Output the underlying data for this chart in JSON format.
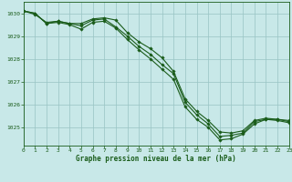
{
  "title": "Graphe pression niveau de la mer (hPa)",
  "bg_color": "#c8e8e8",
  "grid_color": "#98c4c4",
  "line_color": "#1a5c1a",
  "x_ticks": [
    0,
    1,
    2,
    3,
    4,
    5,
    6,
    7,
    8,
    9,
    10,
    11,
    12,
    13,
    14,
    15,
    16,
    17,
    18,
    19,
    20,
    21,
    22,
    23
  ],
  "y_ticks": [
    1025,
    1026,
    1027,
    1028,
    1029,
    1030
  ],
  "ylim": [
    1024.2,
    1030.5
  ],
  "xlim": [
    0,
    23
  ],
  "series": [
    [
      1030.1,
      1030.0,
      1029.55,
      1029.65,
      1029.55,
      1029.55,
      1029.75,
      1029.8,
      1029.7,
      1029.15,
      1028.75,
      1028.45,
      1028.05,
      1027.45,
      1026.25,
      1025.7,
      1025.3,
      1024.8,
      1024.75,
      1024.85,
      1025.3,
      1025.4,
      1025.35,
      1025.3
    ],
    [
      1030.1,
      1029.95,
      1029.6,
      1029.65,
      1029.55,
      1029.45,
      1029.7,
      1029.75,
      1029.4,
      1029.0,
      1028.55,
      1028.2,
      1027.75,
      1027.35,
      1026.1,
      1025.55,
      1025.15,
      1024.6,
      1024.65,
      1024.75,
      1025.25,
      1025.35,
      1025.35,
      1025.25
    ],
    [
      1030.1,
      1030.0,
      1029.55,
      1029.6,
      1029.5,
      1029.3,
      1029.6,
      1029.65,
      1029.35,
      1028.85,
      1028.4,
      1028.0,
      1027.55,
      1027.1,
      1025.9,
      1025.35,
      1025.0,
      1024.45,
      1024.5,
      1024.7,
      1025.15,
      1025.35,
      1025.3,
      1025.2
    ]
  ]
}
